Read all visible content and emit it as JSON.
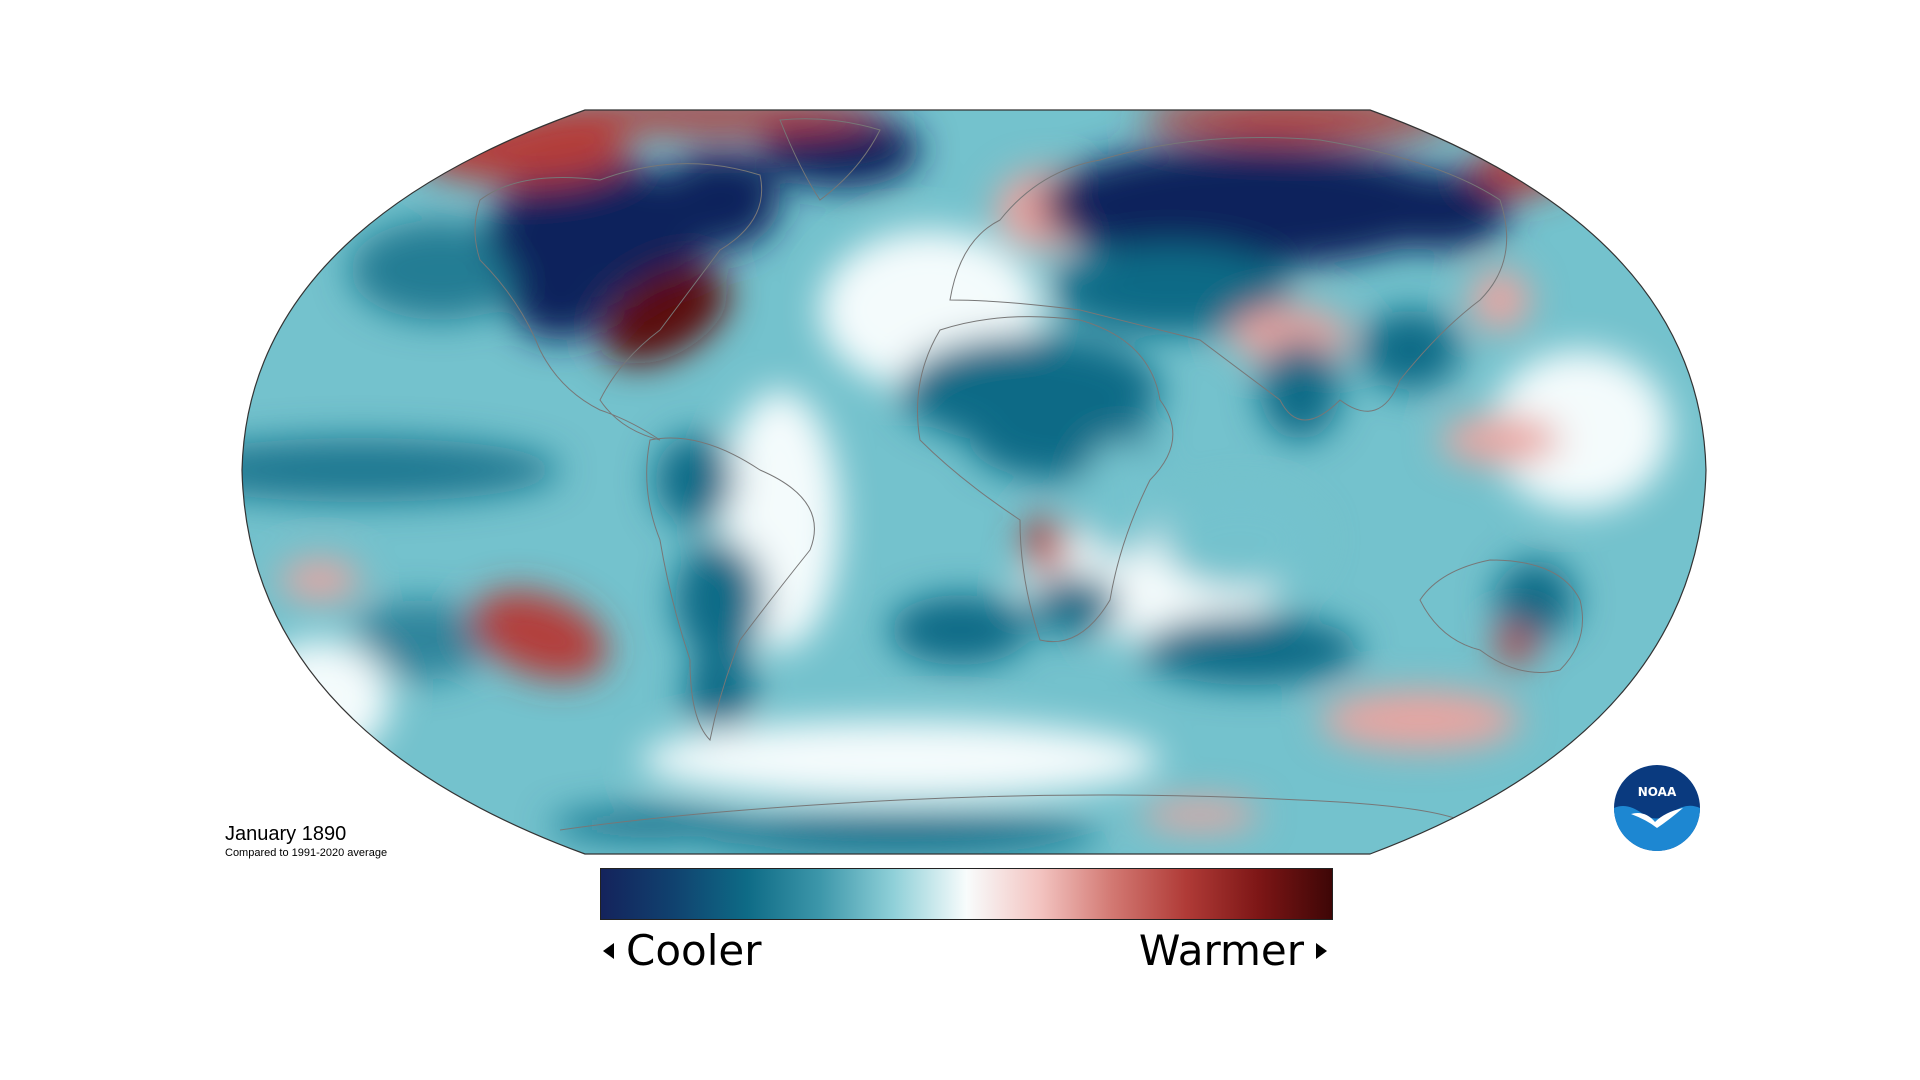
{
  "map": {
    "title": "January 1890",
    "subtitle": "Compared to 1991-2020 average",
    "projection": "Robinson",
    "variable": "temperature anomaly",
    "colors": {
      "cold_extreme": "#10245c",
      "cold": "#0e6b86",
      "cool": "#74c2cd",
      "neutral": "#f4fbfc",
      "warm": "#e9a4a0",
      "hot": "#b43d3a",
      "hot_extreme": "#5b0a0a",
      "coastline": "#777777",
      "outline": "#333333"
    },
    "regions": [
      {
        "name": "Alaska and northwest Canada",
        "anomaly": "warmer"
      },
      {
        "name": "Arctic Ocean",
        "anomaly": "warmer"
      },
      {
        "name": "Canada and northern United States",
        "anomaly": "much cooler"
      },
      {
        "name": "Eastern United States",
        "anomaly": "much warmer"
      },
      {
        "name": "Greenland",
        "anomaly": "much cooler"
      },
      {
        "name": "Scandinavia",
        "anomaly": "warmer"
      },
      {
        "name": "Western Europe",
        "anomaly": "near average"
      },
      {
        "name": "Russia and Siberia",
        "anomaly": "much cooler"
      },
      {
        "name": "Eastern China and Japan",
        "anomaly": "warmer"
      },
      {
        "name": "Tibetan Plateau",
        "anomaly": "warmer"
      },
      {
        "name": "Sahara and North Africa",
        "anomaly": "cooler"
      },
      {
        "name": "Southern Africa",
        "anomaly": "mixed"
      },
      {
        "name": "South America",
        "anomaly": "cooler"
      },
      {
        "name": "Equatorial Pacific",
        "anomaly": "cooler"
      },
      {
        "name": "Southeast Pacific",
        "anomaly": "warmer"
      },
      {
        "name": "Australia",
        "anomaly": "mixed"
      },
      {
        "name": "Antarctica",
        "anomaly": "mixed"
      }
    ]
  },
  "legend": {
    "left_label": "Cooler",
    "right_label": "Warmer",
    "gradient": [
      "#14235c",
      "#10426f",
      "#0e6b86",
      "#3d97aa",
      "#8fd0d8",
      "#f8fcfc",
      "#f3c4c1",
      "#d27872",
      "#b03b37",
      "#7d1616",
      "#3e0606"
    ]
  },
  "logo": {
    "text": "NOAA",
    "colors": {
      "outer": "#0a3a7f",
      "inner": "#1d87d2",
      "bird": "#ffffff"
    }
  }
}
